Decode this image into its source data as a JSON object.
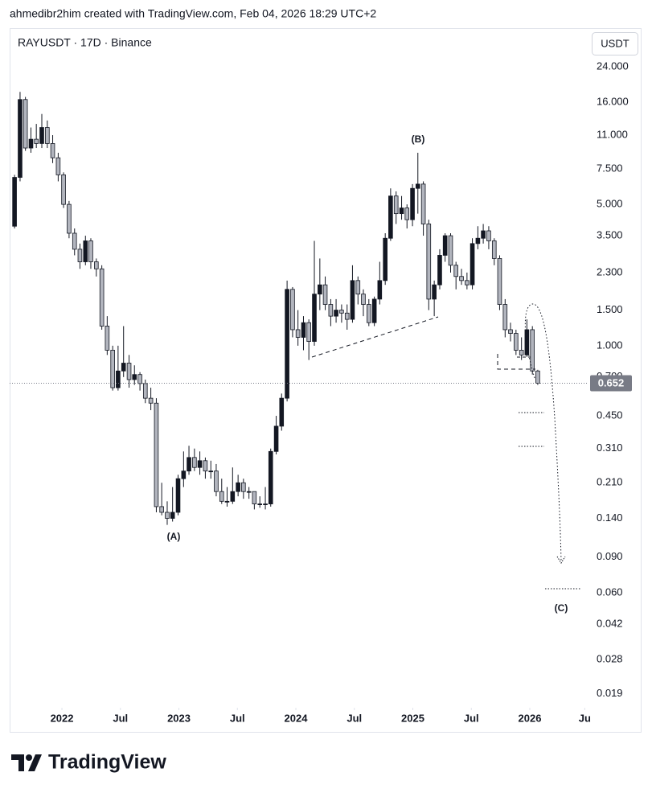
{
  "header": "ahmedibr2him created with TradingView.com, Feb 04, 2026 18:29 UTC+2",
  "brand": "TradingView",
  "chart_data": {
    "type": "candlestick",
    "title": "RAYUSDT · 17D · Binance",
    "currency": "USDT",
    "log_scale": true,
    "grid": false,
    "up_color": "#131722",
    "down_color": "#b2b5be",
    "x": [
      2021.595,
      2021.642,
      2021.688,
      2021.735,
      2021.781,
      2021.828,
      2021.875,
      2021.921,
      2021.968,
      2022.014,
      2022.061,
      2022.108,
      2022.154,
      2022.201,
      2022.247,
      2022.294,
      2022.341,
      2022.387,
      2022.434,
      2022.48,
      2022.527,
      2022.574,
      2022.62,
      2022.667,
      2022.713,
      2022.76,
      2022.807,
      2022.853,
      2022.9,
      2022.946,
      2022.993,
      2023.04,
      2023.086,
      2023.133,
      2023.179,
      2023.226,
      2023.273,
      2023.319,
      2023.366,
      2023.412,
      2023.459,
      2023.506,
      2023.552,
      2023.599,
      2023.645,
      2023.692,
      2023.739,
      2023.785,
      2023.832,
      2023.878,
      2023.925,
      2023.972,
      2024.018,
      2024.065,
      2024.111,
      2024.158,
      2024.205,
      2024.251,
      2024.298,
      2024.344,
      2024.391,
      2024.438,
      2024.484,
      2024.531,
      2024.577,
      2024.624,
      2024.671,
      2024.717,
      2024.764,
      2024.81,
      2024.857,
      2024.904,
      2024.95,
      2024.997,
      2025.043,
      2025.09,
      2025.136,
      2025.183,
      2025.23,
      2025.276,
      2025.323,
      2025.369,
      2025.416,
      2025.463,
      2025.509,
      2025.556,
      2025.602,
      2025.649,
      2025.696,
      2025.742,
      2025.789,
      2025.835,
      2025.882,
      2025.929,
      2025.975,
      2026.022,
      2026.068
    ],
    "open": [
      3.9,
      6.8,
      16.5,
      9.5,
      10.5,
      10,
      12,
      10,
      8.5,
      7,
      5,
      3.6,
      3.0,
      2.6,
      3.3,
      2.6,
      2.4,
      1.25,
      0.95,
      0.62,
      0.75,
      0.82,
      0.68,
      0.72,
      0.65,
      0.55,
      0.52,
      0.16,
      0.15,
      0.14,
      0.15,
      0.22,
      0.24,
      0.28,
      0.25,
      0.27,
      0.24,
      0.24,
      0.19,
      0.17,
      0.17,
      0.19,
      0.21,
      0.19,
      0.19,
      0.165,
      0.165,
      0.165,
      0.3,
      0.4,
      0.55,
      1.9,
      1.2,
      1.1,
      1.3,
      1.05,
      1.8,
      2.0,
      1.6,
      1.4,
      1.5,
      1.45,
      1.35,
      2.1,
      1.8,
      1.6,
      1.3,
      1.7,
      2.1,
      3.4,
      5.5,
      4.5,
      4.8,
      4.2,
      6.0,
      6.3,
      4.0,
      1.7,
      2.0,
      2.8,
      3.5,
      2.5,
      2.2,
      2.1,
      2.0,
      3.2,
      3.4,
      3.7,
      3.3,
      2.7,
      1.6,
      1.2,
      1.15,
      0.95,
      0.9,
      1.2,
      0.75
    ],
    "high": [
      7.0,
      18,
      17,
      12,
      12.5,
      14,
      13,
      11,
      9,
      7.2,
      5.2,
      3.8,
      3.2,
      3.5,
      3.4,
      2.7,
      2.5,
      1.4,
      1.0,
      1.0,
      1.25,
      0.9,
      0.8,
      0.74,
      0.68,
      0.62,
      0.55,
      0.21,
      0.17,
      0.2,
      0.23,
      0.3,
      0.32,
      0.31,
      0.3,
      0.28,
      0.27,
      0.26,
      0.22,
      0.2,
      0.25,
      0.23,
      0.22,
      0.2,
      0.19,
      0.18,
      0.2,
      0.31,
      0.45,
      0.58,
      2.1,
      1.95,
      1.5,
      1.4,
      1.35,
      3.3,
      2.7,
      2.2,
      1.7,
      1.7,
      1.6,
      1.6,
      2.5,
      2.2,
      1.9,
      1.7,
      1.75,
      2.6,
      3.6,
      6.0,
      5.8,
      5.5,
      5.0,
      6.3,
      9.0,
      6.5,
      4.2,
      2.1,
      3.0,
      3.6,
      3.6,
      2.6,
      2.4,
      2.3,
      3.4,
      3.9,
      4.0,
      3.9,
      3.4,
      2.8,
      1.7,
      1.3,
      1.2,
      1.1,
      1.35,
      1.25,
      0.76
    ],
    "low": [
      3.8,
      6.5,
      9.2,
      9,
      9.5,
      9.5,
      9.5,
      8,
      6.5,
      4.8,
      3.4,
      2.8,
      2.4,
      2.5,
      2.4,
      2.2,
      1.2,
      0.9,
      0.6,
      0.6,
      0.7,
      0.62,
      0.64,
      0.6,
      0.52,
      0.48,
      0.15,
      0.145,
      0.13,
      0.135,
      0.145,
      0.2,
      0.23,
      0.24,
      0.23,
      0.22,
      0.22,
      0.18,
      0.165,
      0.16,
      0.165,
      0.18,
      0.175,
      0.175,
      0.155,
      0.158,
      0.155,
      0.16,
      0.29,
      0.38,
      0.53,
      1.1,
      1.0,
      0.95,
      0.85,
      1.0,
      1.5,
      1.5,
      1.25,
      1.3,
      1.3,
      1.2,
      1.3,
      1.6,
      1.4,
      1.25,
      1.25,
      1.6,
      2.0,
      3.3,
      4.0,
      4.2,
      3.8,
      3.9,
      4.5,
      3.5,
      1.5,
      1.4,
      1.9,
      2.6,
      2.3,
      1.9,
      2.0,
      1.9,
      1.9,
      3.0,
      3.2,
      3.0,
      2.5,
      1.5,
      1.1,
      1.05,
      0.9,
      0.85,
      0.88,
      0.72,
      0.64
    ],
    "close": [
      6.8,
      16.5,
      9.5,
      10.5,
      10,
      12,
      10,
      8.5,
      7,
      5,
      3.6,
      3.0,
      2.6,
      3.3,
      2.6,
      2.4,
      1.25,
      0.95,
      0.62,
      0.75,
      0.82,
      0.68,
      0.72,
      0.65,
      0.55,
      0.52,
      0.16,
      0.15,
      0.14,
      0.15,
      0.22,
      0.24,
      0.28,
      0.25,
      0.27,
      0.24,
      0.24,
      0.19,
      0.17,
      0.17,
      0.19,
      0.21,
      0.19,
      0.19,
      0.165,
      0.165,
      0.165,
      0.3,
      0.4,
      0.55,
      1.9,
      1.2,
      1.1,
      1.3,
      1.05,
      1.8,
      2.0,
      1.6,
      1.4,
      1.5,
      1.45,
      1.35,
      2.1,
      1.8,
      1.6,
      1.3,
      1.7,
      2.1,
      3.4,
      5.5,
      4.5,
      4.8,
      4.2,
      6.0,
      6.3,
      4.0,
      1.7,
      2.0,
      2.8,
      3.5,
      2.5,
      2.2,
      2.1,
      2.0,
      3.2,
      3.4,
      3.7,
      3.3,
      2.7,
      1.6,
      1.2,
      1.15,
      0.95,
      0.9,
      1.2,
      0.75,
      0.652
    ],
    "last_price": 0.652,
    "xlim": [
      2021.553,
      2026.488
    ],
    "xticks": [
      {
        "value": 2022,
        "label": "2022"
      },
      {
        "value": 2022.5,
        "label": "Jul"
      },
      {
        "value": 2023,
        "label": "2023"
      },
      {
        "value": 2023.5,
        "label": "Jul"
      },
      {
        "value": 2024,
        "label": "2024"
      },
      {
        "value": 2024.5,
        "label": "Jul"
      },
      {
        "value": 2025,
        "label": "2025"
      },
      {
        "value": 2025.5,
        "label": "Jul"
      },
      {
        "value": 2026,
        "label": "2026"
      },
      {
        "value": 2026.47,
        "label": "Ju"
      }
    ],
    "ylim": [
      0.0162,
      37.2
    ],
    "yticks": [
      {
        "value": 24,
        "label": "24.000"
      },
      {
        "value": 16,
        "label": "16.000"
      },
      {
        "value": 11,
        "label": "11.000"
      },
      {
        "value": 7.5,
        "label": "7.500"
      },
      {
        "value": 5,
        "label": "5.000"
      },
      {
        "value": 3.5,
        "label": "3.500"
      },
      {
        "value": 2.3,
        "label": "2.300"
      },
      {
        "value": 1.5,
        "label": "1.500"
      },
      {
        "value": 1,
        "label": "1.000"
      },
      {
        "value": 0.7,
        "label": "0.700"
      },
      {
        "value": 0.45,
        "label": "0.450"
      },
      {
        "value": 0.31,
        "label": "0.310"
      },
      {
        "value": 0.21,
        "label": "0.210"
      },
      {
        "value": 0.14,
        "label": "0.140"
      },
      {
        "value": 0.09,
        "label": "0.090"
      },
      {
        "value": 0.06,
        "label": "0.060"
      },
      {
        "value": 0.042,
        "label": "0.042"
      },
      {
        "value": 0.028,
        "label": "0.028"
      },
      {
        "value": 0.019,
        "label": "0.019"
      }
    ],
    "annotations": [
      "(A)",
      "(B)",
      "(C)"
    ]
  }
}
